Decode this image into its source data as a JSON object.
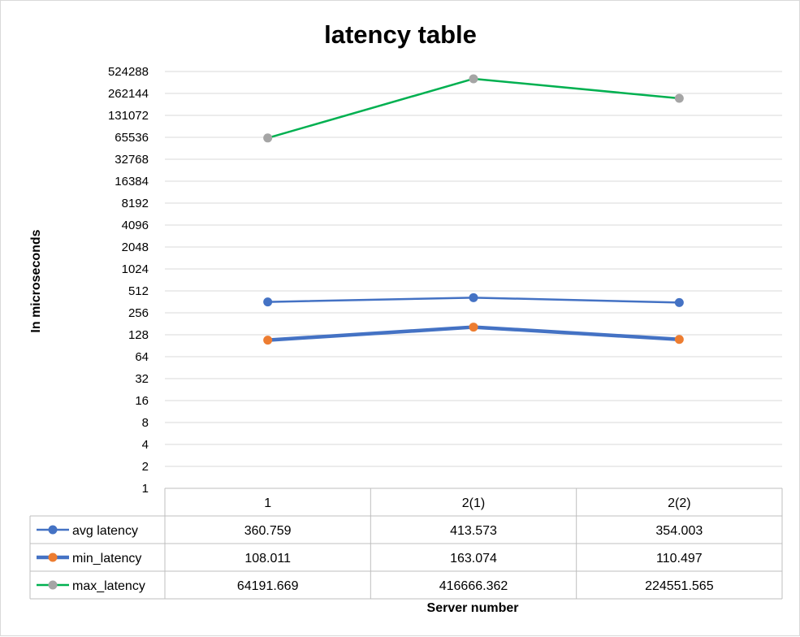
{
  "chart_data": {
    "type": "line",
    "title": "latency table",
    "xlabel": "Server number",
    "ylabel": "In microseconds",
    "yscale": "log2",
    "ylim": [
      1,
      524288
    ],
    "yticks": [
      "1",
      "2",
      "4",
      "8",
      "16",
      "32",
      "64",
      "128",
      "256",
      "512",
      "1024",
      "2048",
      "4096",
      "8192",
      "16384",
      "32768",
      "65536",
      "131072",
      "262144",
      "524288"
    ],
    "categories": [
      "1",
      "2(1)",
      "2(2)"
    ],
    "series": [
      {
        "name": "avg latency",
        "values": [
          360.759,
          413.573,
          354.003
        ],
        "labels": [
          "360.759",
          "413.573",
          "354.003"
        ],
        "line_color": "#4472c4",
        "marker_color": "#4472c4",
        "line_width": 2.5
      },
      {
        "name": "min_latency",
        "values": [
          108.011,
          163.074,
          110.497
        ],
        "labels": [
          "108.011",
          "163.074",
          "110.497"
        ],
        "line_color": "#4472c4",
        "marker_color": "#ed7d31",
        "line_width": 4.5
      },
      {
        "name": "max_latency",
        "values": [
          64191.669,
          416666.362,
          224551.565
        ],
        "labels": [
          "64191.669",
          "416666.362",
          "224551.565"
        ],
        "line_color": "#00b050",
        "marker_color": "#a5a5a5",
        "line_width": 2.5
      }
    ],
    "grid": true,
    "legend": "data-table"
  }
}
